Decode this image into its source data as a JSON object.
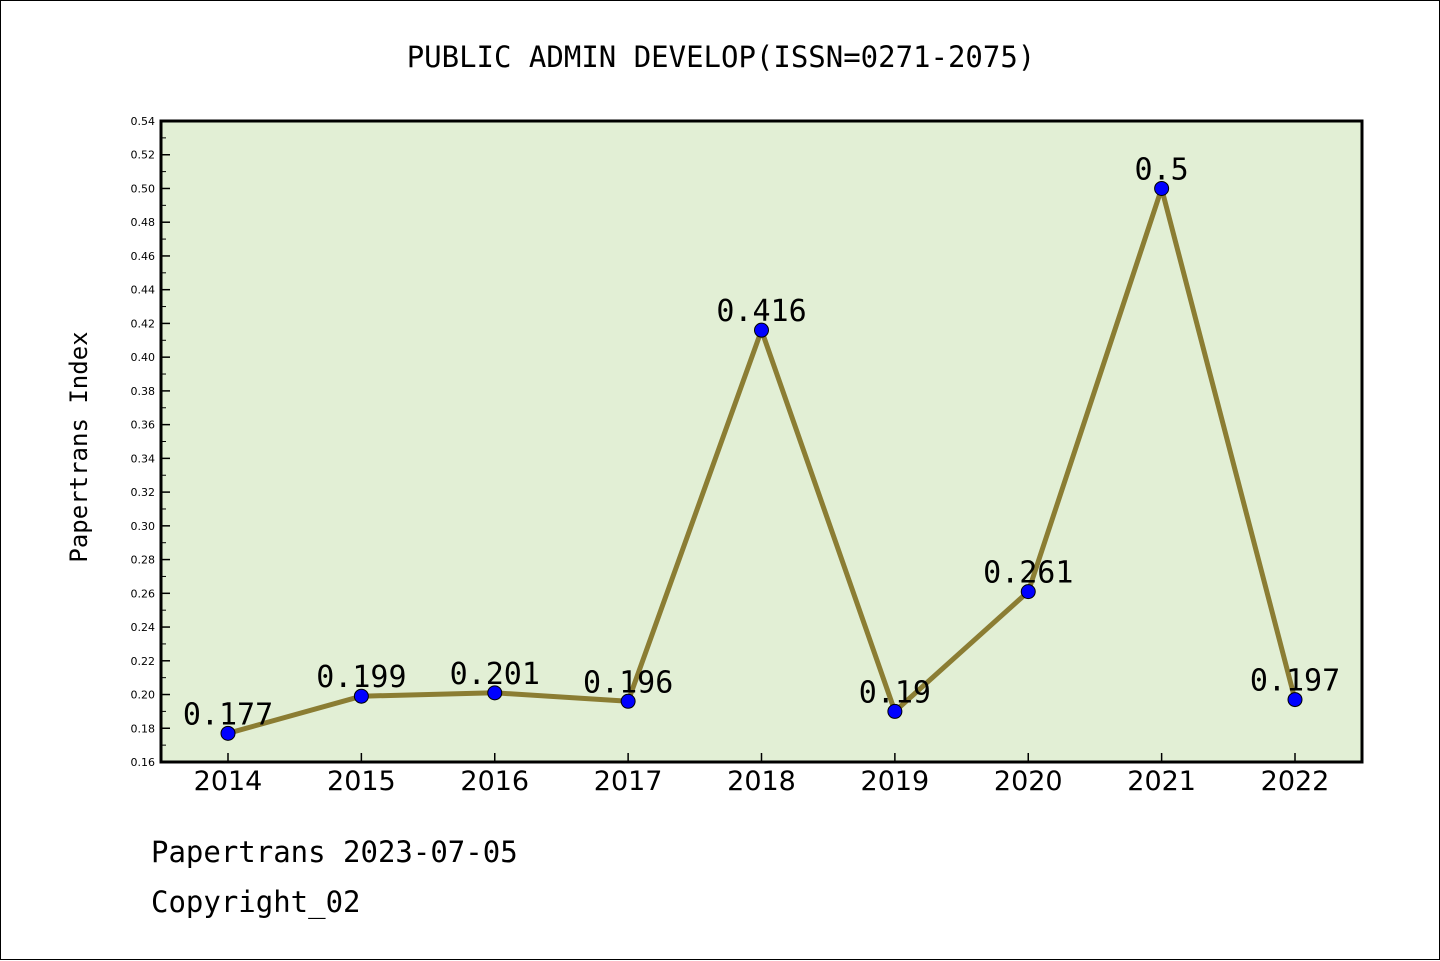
{
  "chart_data": {
    "type": "line",
    "title": "PUBLIC ADMIN DEVELOP(ISSN=0271-2075)",
    "xlabel": "",
    "ylabel": "Papertrans Index",
    "categories": [
      "2014",
      "2015",
      "2016",
      "2017",
      "2018",
      "2019",
      "2020",
      "2021",
      "2022"
    ],
    "series": [
      {
        "values": [
          0.177,
          0.199,
          0.201,
          0.196,
          0.416,
          0.19,
          0.261,
          0.5,
          0.197
        ],
        "labels": [
          "0.177",
          "0.199",
          "0.201",
          "0.196",
          "0.416",
          "0.19",
          "0.261",
          "0.5",
          "0.197"
        ]
      }
    ],
    "ylim": [
      0.16,
      0.54
    ],
    "yticks": [
      "0.16",
      "0.18",
      "0.20",
      "0.22",
      "0.24",
      "0.26",
      "0.28",
      "0.30",
      "0.32",
      "0.34",
      "0.36",
      "0.38",
      "0.40",
      "0.42",
      "0.44",
      "0.46",
      "0.48",
      "0.50",
      "0.52",
      "0.54"
    ],
    "grid": false,
    "legend": "none",
    "colors": {
      "plot_background": "#e2efd5",
      "line": "#8b7d33",
      "marker": "#0000ff"
    }
  },
  "footer": {
    "line1": "Papertrans 2023-07-05",
    "line2": "Copyright_02"
  }
}
